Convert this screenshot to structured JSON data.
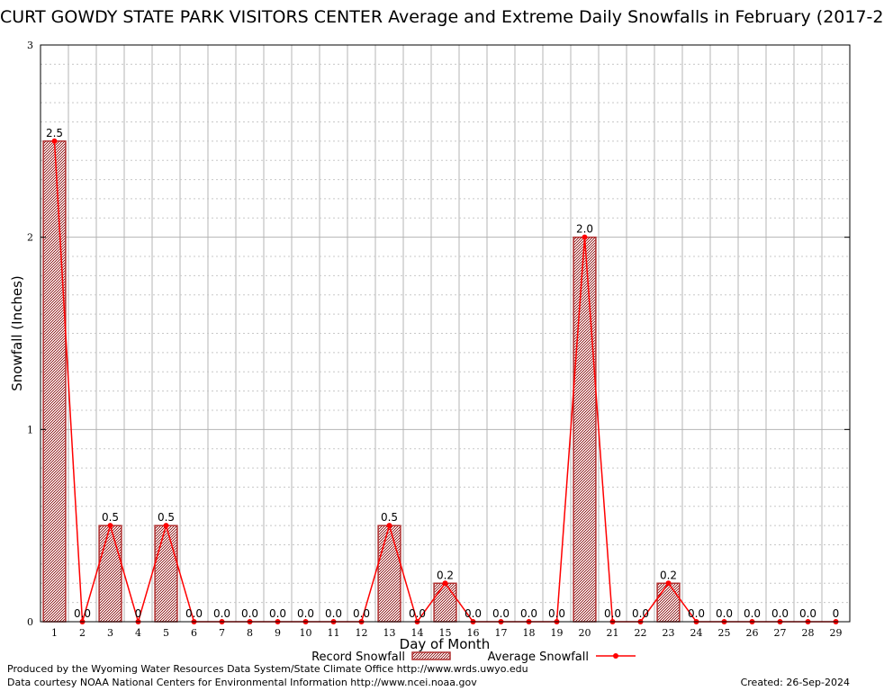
{
  "chart_data": {
    "type": "bar",
    "title": "CURT GOWDY STATE PARK VISITORS CENTER Average and Extreme Daily Snowfalls in February (2017-2",
    "xlabel": "Day of Month",
    "ylabel": "Snowfall (Inches)",
    "ylim": [
      0,
      3
    ],
    "yticks": [
      "0",
      "1",
      "2",
      "3"
    ],
    "grid": true,
    "legend_placement": "bottom-center",
    "categories": [
      "1",
      "2",
      "3",
      "4",
      "5",
      "6",
      "7",
      "8",
      "9",
      "10",
      "11",
      "12",
      "13",
      "14",
      "15",
      "16",
      "17",
      "18",
      "19",
      "20",
      "21",
      "22",
      "23",
      "24",
      "25",
      "26",
      "27",
      "28",
      "29"
    ],
    "series": [
      {
        "name": "Record Snowfall",
        "kind": "bar",
        "color": "#b03030",
        "values": [
          2.5,
          0,
          0.5,
          0,
          0.5,
          0,
          0,
          0,
          0,
          0,
          0,
          0,
          0.5,
          0,
          0.2,
          0,
          0,
          0,
          0,
          2.0,
          0,
          0,
          0.2,
          0,
          0,
          0,
          0,
          0,
          0
        ]
      },
      {
        "name": "Average Snowfall",
        "kind": "line",
        "color": "#ff0000",
        "values": [
          2.5,
          0,
          0.5,
          0,
          0.5,
          0,
          0,
          0,
          0,
          0,
          0,
          0,
          0.5,
          0,
          0.2,
          0,
          0,
          0,
          0,
          2.0,
          0,
          0,
          0.2,
          0,
          0,
          0,
          0,
          0,
          0
        ]
      }
    ],
    "data_labels": [
      "2.5",
      "0.0",
      "0.5",
      "0",
      "0.5",
      "0.0",
      "0.0",
      "0.0",
      "0.0",
      "0.0",
      "0.0",
      "0.0",
      "0.5",
      "0.0",
      "0.2",
      "0.0",
      "0.0",
      "0.0",
      "0.0",
      "2.0",
      "0.0",
      "0.0",
      "0.2",
      "0.0",
      "0.0",
      "0.0",
      "0.0",
      "0.0",
      "0"
    ]
  },
  "footer": {
    "producer": "Produced by the Wyoming Water Resources Data System/State Climate Office http://www.wrds.uwyo.edu",
    "courtesy": "Data courtesy NOAA National Centers for Environmental Information http://www.ncei.noaa.gov",
    "created": "Created: 26-Sep-2024"
  }
}
